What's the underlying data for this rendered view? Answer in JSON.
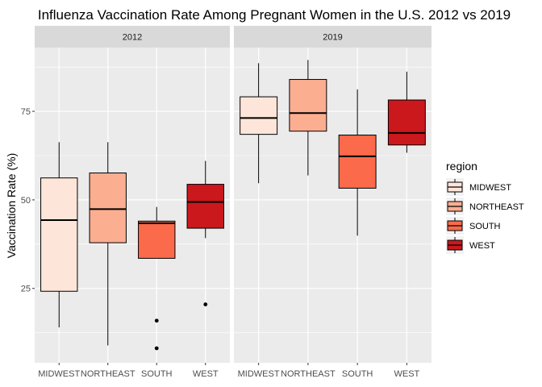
{
  "chart_data": {
    "type": "boxplot",
    "title": "Influenza Vaccination Rate Among Pregnant Women in the U.S. 2012 vs 2019",
    "xlabel": "",
    "ylabel": "Vaccination Rate (%)",
    "ylim": [
      4,
      93
    ],
    "yticks": [
      25,
      50,
      75
    ],
    "categories": [
      "MIDWEST",
      "NORTHEAST",
      "SOUTH",
      "WEST"
    ],
    "legend": {
      "title": "region",
      "position": "right",
      "entries": [
        {
          "label": "MIDWEST",
          "color": "#FEE5D9"
        },
        {
          "label": "NORTHEAST",
          "color": "#FCAE91"
        },
        {
          "label": "SOUTH",
          "color": "#FB6A4A"
        },
        {
          "label": "WEST",
          "color": "#CB181D"
        }
      ]
    },
    "panels": [
      {
        "label": "2012",
        "boxes": [
          {
            "region": "MIDWEST",
            "min": 14.0,
            "q1": 24.2,
            "median": 44.3,
            "q3": 56.2,
            "max": 66.3,
            "outliers": []
          },
          {
            "region": "NORTHEAST",
            "min": 8.9,
            "q1": 37.9,
            "median": 47.4,
            "q3": 57.6,
            "max": 66.3,
            "outliers": []
          },
          {
            "region": "SOUTH",
            "min": 33.5,
            "q1": 33.5,
            "median": 43.4,
            "q3": 44.0,
            "max": 48.0,
            "outliers": [
              15.9,
              8.1
            ]
          },
          {
            "region": "WEST",
            "min": 39.2,
            "q1": 42.0,
            "median": 49.4,
            "q3": 54.4,
            "max": 61.0,
            "outliers": [
              20.5
            ]
          }
        ]
      },
      {
        "label": "2019",
        "boxes": [
          {
            "region": "MIDWEST",
            "min": 54.7,
            "q1": 68.5,
            "median": 73.1,
            "q3": 79.1,
            "max": 88.6,
            "outliers": []
          },
          {
            "region": "NORTHEAST",
            "min": 56.9,
            "q1": 69.4,
            "median": 74.5,
            "q3": 84.0,
            "max": 89.5,
            "outliers": []
          },
          {
            "region": "SOUTH",
            "min": 39.9,
            "q1": 53.3,
            "median": 62.3,
            "q3": 68.3,
            "max": 81.2,
            "outliers": []
          },
          {
            "region": "WEST",
            "min": 63.3,
            "q1": 65.5,
            "median": 68.9,
            "q3": 78.2,
            "max": 86.2,
            "outliers": []
          }
        ]
      }
    ]
  }
}
